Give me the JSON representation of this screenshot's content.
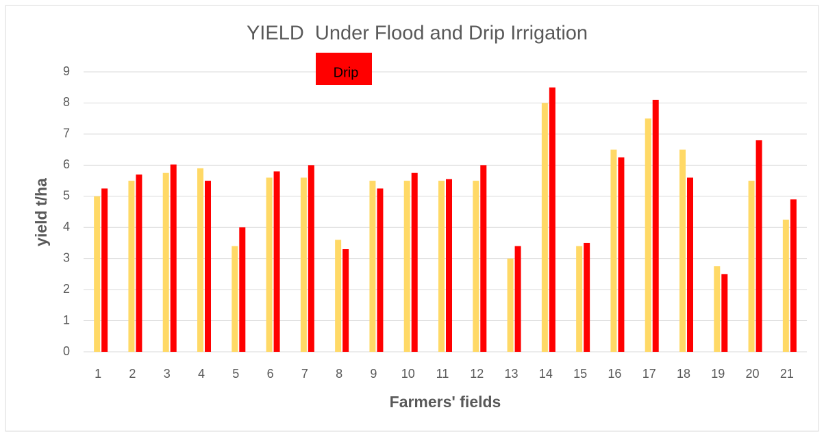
{
  "chart_data": {
    "type": "bar",
    "title": "YIELD  Under Flood and Drip Irrigation",
    "x_label": "Farmers' fields",
    "y_label": "yield t/ha",
    "categories": [
      "1",
      "2",
      "3",
      "4",
      "5",
      "6",
      "7",
      "8",
      "9",
      "10",
      "11",
      "12",
      "13",
      "14",
      "15",
      "16",
      "17",
      "18",
      "19",
      "20",
      "21"
    ],
    "series": [
      {
        "color": "#ffd966",
        "values": [
          5.0,
          5.5,
          5.75,
          5.9,
          3.4,
          5.6,
          5.6,
          3.6,
          5.5,
          5.5,
          5.5,
          5.5,
          3.0,
          8.0,
          3.4,
          6.5,
          7.5,
          6.5,
          2.75,
          5.5,
          4.25
        ]
      },
      {
        "name": "Drip",
        "color": "#ff0000",
        "values": [
          5.25,
          5.7,
          6.02,
          5.5,
          4.0,
          5.8,
          6.0,
          3.3,
          5.25,
          5.75,
          5.55,
          6.0,
          3.4,
          8.5,
          3.5,
          6.25,
          8.1,
          5.6,
          2.5,
          6.8,
          4.9
        ]
      }
    ],
    "ylim": [
      0,
      9
    ],
    "yticks": [
      0,
      1,
      2,
      3,
      4,
      5,
      6,
      7,
      8,
      9
    ],
    "grid": true
  }
}
